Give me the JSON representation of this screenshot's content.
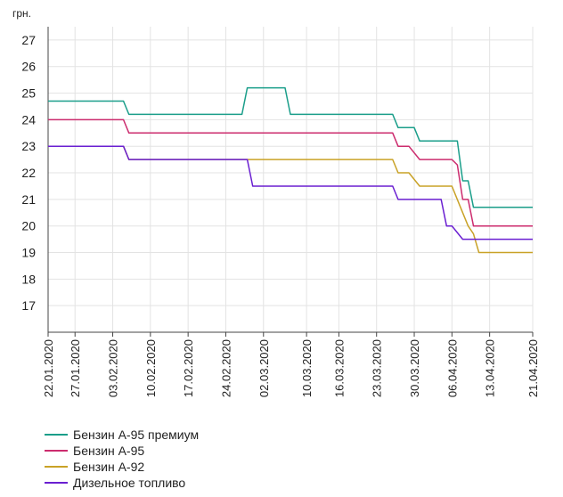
{
  "chart_data": {
    "type": "line",
    "ylabel": "грн.",
    "ylim": [
      16,
      27.5
    ],
    "yticks": [
      "17",
      "18",
      "19",
      "20",
      "21",
      "22",
      "23",
      "24",
      "25",
      "26",
      "27"
    ],
    "xticks": [
      "22.01.2020",
      "27.01.2020",
      "03.02.2020",
      "10.02.2020",
      "17.02.2020",
      "24.02.2020",
      "02.03.2020",
      "10.03.2020",
      "16.03.2020",
      "23.03.2020",
      "30.03.2020",
      "06.04.2020",
      "13.04.2020",
      "21.04.2020"
    ],
    "grid": true,
    "legend_position": "bottom-left",
    "series": [
      {
        "name": "Бензин А-95 премиум",
        "color": "#1a9e8a",
        "points": [
          [
            "22.01.2020",
            24.7
          ],
          [
            "05.02.2020",
            24.7
          ],
          [
            "06.02.2020",
            24.2
          ],
          [
            "27.02.2020",
            24.2
          ],
          [
            "28.02.2020",
            25.2
          ],
          [
            "06.03.2020",
            25.2
          ],
          [
            "07.03.2020",
            24.2
          ],
          [
            "26.03.2020",
            24.2
          ],
          [
            "27.03.2020",
            23.7
          ],
          [
            "30.03.2020",
            23.7
          ],
          [
            "31.03.2020",
            23.2
          ],
          [
            "07.04.2020",
            23.2
          ],
          [
            "08.04.2020",
            21.7
          ],
          [
            "09.04.2020",
            21.7
          ],
          [
            "10.04.2020",
            20.7
          ],
          [
            "21.04.2020",
            20.7
          ]
        ]
      },
      {
        "name": "Бензин А-95",
        "color": "#cc2c6e",
        "points": [
          [
            "22.01.2020",
            24.0
          ],
          [
            "05.02.2020",
            24.0
          ],
          [
            "06.02.2020",
            23.5
          ],
          [
            "26.03.2020",
            23.5
          ],
          [
            "27.03.2020",
            23.0
          ],
          [
            "29.03.2020",
            23.0
          ],
          [
            "31.03.2020",
            22.5
          ],
          [
            "06.04.2020",
            22.5
          ],
          [
            "07.04.2020",
            22.3
          ],
          [
            "08.04.2020",
            21.0
          ],
          [
            "09.04.2020",
            21.0
          ],
          [
            "10.04.2020",
            20.0
          ],
          [
            "21.04.2020",
            20.0
          ]
        ]
      },
      {
        "name": "Бензин А-92",
        "color": "#c9a227",
        "points": [
          [
            "22.01.2020",
            23.0
          ],
          [
            "05.02.2020",
            23.0
          ],
          [
            "06.02.2020",
            22.5
          ],
          [
            "26.03.2020",
            22.5
          ],
          [
            "27.03.2020",
            22.0
          ],
          [
            "29.03.2020",
            22.0
          ],
          [
            "31.03.2020",
            21.5
          ],
          [
            "06.04.2020",
            21.5
          ],
          [
            "08.04.2020",
            20.5
          ],
          [
            "09.04.2020",
            20.0
          ],
          [
            "10.04.2020",
            19.7
          ],
          [
            "11.04.2020",
            19.0
          ],
          [
            "21.04.2020",
            19.0
          ]
        ]
      },
      {
        "name": "Дизельное топливо",
        "color": "#6a1fd1",
        "points": [
          [
            "22.01.2020",
            23.0
          ],
          [
            "05.02.2020",
            23.0
          ],
          [
            "06.02.2020",
            22.5
          ],
          [
            "28.02.2020",
            22.5
          ],
          [
            "29.02.2020",
            21.5
          ],
          [
            "26.03.2020",
            21.5
          ],
          [
            "27.03.2020",
            21.0
          ],
          [
            "04.04.2020",
            21.0
          ],
          [
            "05.04.2020",
            20.0
          ],
          [
            "06.04.2020",
            20.0
          ],
          [
            "08.04.2020",
            19.5
          ],
          [
            "21.04.2020",
            19.5
          ]
        ]
      }
    ]
  }
}
